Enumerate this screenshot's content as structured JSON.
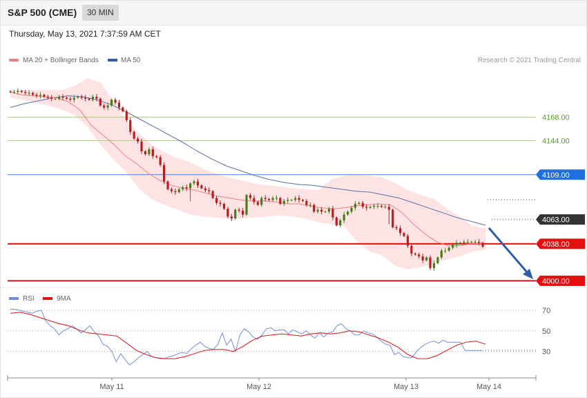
{
  "header": {
    "instrument": "S&P 500 (CME)",
    "timeframe": "30 MIN",
    "datetime": "Thursday, May 13, 2021 7:37:59 AM CET"
  },
  "legend": {
    "ma20_label": "MA 20 + Bollinger Bands",
    "ma50_label": "MA 50",
    "rsi_label": "RSI",
    "rsi_ma_label": "9MA",
    "copyright": "Research © 2021 Trading Central"
  },
  "colors": {
    "up_candle": "#4a7a1e",
    "down_candle": "#b3201f",
    "ma20": "#f08080",
    "bollinger_fill": "#fde2e2",
    "ma50": "#5a6fa8",
    "resistance_green": "#a6d07a",
    "pivot_blue": "#3b82f6",
    "support_red": "#e31010",
    "current_price_bg": "#333333",
    "rsi": "#6f8ee0",
    "rsi_ma": "#e31010",
    "arrow": "#2f5ea6"
  },
  "chart_data": [
    {
      "type": "candlestick",
      "title": "",
      "x_tick_labels": [
        "May 11",
        "May 12",
        "May 13",
        "May 14"
      ],
      "ylim": [
        3996,
        4216
      ],
      "levels": [
        {
          "name": "resistance_2",
          "value": 4168.0,
          "label": "4168.00",
          "style": "green"
        },
        {
          "name": "resistance_1",
          "value": 4144.0,
          "label": "4144.00",
          "style": "green"
        },
        {
          "name": "pivot",
          "value": 4109.0,
          "label": "4109.00",
          "style": "blue"
        },
        {
          "name": "current_price",
          "value": 4063.0,
          "label": "4063.00",
          "style": "dark"
        },
        {
          "name": "support_1",
          "value": 4038.0,
          "label": "4038.00",
          "style": "red"
        },
        {
          "name": "support_2",
          "value": 4000.0,
          "label": "4000.00",
          "style": "red"
        }
      ],
      "close_path": [
        4194,
        4194,
        4195,
        4194,
        4193,
        4193,
        4191,
        4190,
        4191,
        4189,
        4188,
        4187,
        4187,
        4189,
        4188,
        4187,
        4186,
        4188,
        4189,
        4188,
        4187,
        4186,
        4189,
        4187,
        4180,
        4178,
        4180,
        4186,
        4183,
        4178,
        4174,
        4165,
        4153,
        4146,
        4143,
        4133,
        4130,
        4135,
        4128,
        4127,
        4119,
        4102,
        4094,
        4092,
        4091,
        4094,
        4096,
        4095,
        4100,
        4102,
        4098,
        4095,
        4093,
        4092,
        4085,
        4080,
        4079,
        4074,
        4066,
        4064,
        4073,
        4072,
        4068,
        4088,
        4085,
        4081,
        4078,
        4085,
        4084,
        4083,
        4085,
        4085,
        4079,
        4082,
        4083,
        4083,
        4085,
        4083,
        4082,
        4078,
        4078,
        4071,
        4073,
        4071,
        4071,
        4074,
        4065,
        4057,
        4062,
        4068,
        4071,
        4075,
        4079,
        4080,
        4076,
        4075,
        4076,
        4077,
        4077,
        4076,
        4076,
        4073,
        4055,
        4054,
        4049,
        4046,
        4036,
        4028,
        4027,
        4025,
        4021,
        4024,
        4013,
        4018,
        4024,
        4031,
        4031,
        4034,
        4037,
        4039,
        4039,
        4040,
        4040,
        4040,
        4040,
        4039,
        4035
      ],
      "ma20_path": [
        4194,
        4191,
        4190,
        4189,
        4188,
        4184,
        4176,
        4160,
        4150,
        4140,
        4128,
        4120,
        4110,
        4103,
        4098,
        4095,
        4093,
        4090,
        4087,
        4085,
        4083,
        4082,
        4082,
        4081,
        4079,
        4079,
        4077,
        4075,
        4074,
        4075,
        4077,
        4078,
        4079,
        4078,
        4070,
        4058,
        4048,
        4040,
        4036,
        4036,
        4038,
        4038
      ],
      "ma50_path": [
        4178,
        4182,
        4185,
        4188,
        4190,
        4189,
        4186,
        4181,
        4174,
        4166,
        4158,
        4150,
        4142,
        4133,
        4125,
        4118,
        4113,
        4108,
        4104,
        4101,
        4099,
        4098,
        4096,
        4094,
        4092,
        4091,
        4088,
        4085,
        4080,
        4075,
        4070,
        4065,
        4061,
        4057
      ],
      "bollinger_upper": [
        4196,
        4196,
        4196,
        4196,
        4196,
        4200,
        4208,
        4204,
        4185,
        4165,
        4152,
        4140,
        4132,
        4126,
        4122,
        4115,
        4110,
        4106,
        4103,
        4100,
        4098,
        4097,
        4095,
        4094,
        4093,
        4104,
        4108,
        4110,
        4108,
        4106,
        4100,
        4093,
        4088,
        4084,
        4074,
        4066,
        4056,
        4054
      ],
      "bollinger_lower": [
        4188,
        4186,
        4183,
        4180,
        4176,
        4170,
        4158,
        4140,
        4125,
        4112,
        4095,
        4084,
        4078,
        4073,
        4068,
        4066,
        4065,
        4064,
        4064,
        4065,
        4066,
        4067,
        4066,
        4064,
        4060,
        4058,
        4056,
        4040,
        4030,
        4026,
        4015,
        4012,
        4014,
        4018,
        4022,
        4025,
        4030,
        4032
      ]
    },
    {
      "type": "line",
      "title": "",
      "series": [
        {
          "name": "RSI",
          "values": [
            71,
            71,
            70,
            69,
            68,
            67,
            69,
            70,
            60,
            55,
            52,
            46,
            50,
            52,
            55,
            52,
            48,
            51,
            55,
            49,
            45,
            37,
            35,
            30,
            20,
            28,
            22,
            17,
            20,
            24,
            27,
            30,
            25,
            24,
            23,
            23,
            25,
            26,
            28,
            29,
            28,
            33,
            36,
            39,
            35,
            33,
            32,
            37,
            48,
            36,
            42,
            30,
            46,
            52,
            49,
            44,
            42,
            46,
            52,
            53,
            50,
            51,
            51,
            47,
            51,
            49,
            47,
            50,
            46,
            43,
            48,
            44,
            48,
            49,
            55,
            57,
            52,
            50,
            46,
            46,
            50,
            48,
            47,
            44,
            40,
            37,
            36,
            27,
            29,
            25,
            24,
            24,
            30,
            34,
            37,
            39,
            40,
            38,
            41,
            39,
            39,
            39,
            39,
            31,
            31,
            31,
            31,
            31
          ]
        },
        {
          "name": "9MA",
          "values": [
            67,
            68,
            66,
            63,
            60,
            57,
            55,
            51,
            48,
            47,
            46,
            45,
            38,
            31,
            27,
            24,
            23,
            23,
            25,
            28,
            31,
            32,
            32,
            30,
            35,
            41,
            45,
            46,
            47,
            46,
            45,
            47,
            48,
            47,
            48,
            50,
            49,
            46,
            43,
            39,
            34,
            27,
            23,
            23,
            26,
            31,
            36,
            39,
            40,
            37
          ]
        }
      ],
      "y_ticks": [
        30,
        50,
        70
      ],
      "ylim": [
        5,
        76
      ]
    }
  ]
}
